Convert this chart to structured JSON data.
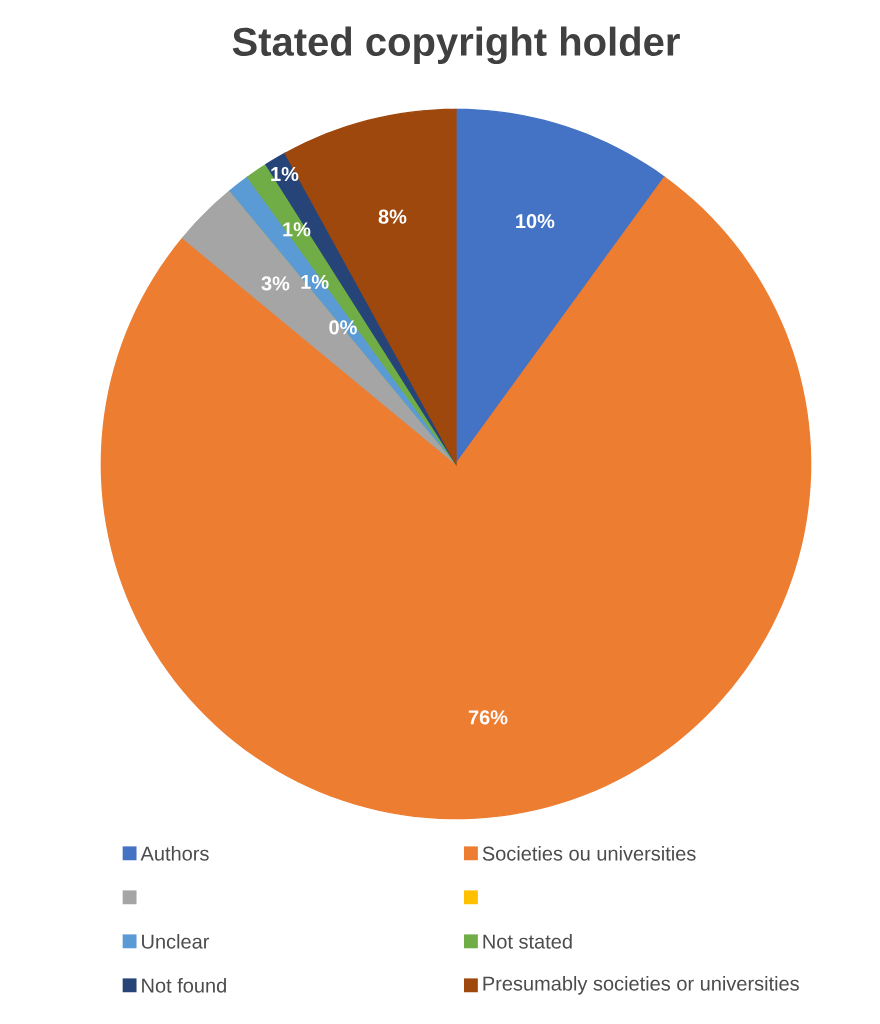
{
  "chart_data": {
    "type": "pie",
    "title": "Stated copyright holder",
    "categories": [
      "Authors",
      "Societies ou universities",
      null,
      null,
      "Unclear",
      "Not stated",
      "Not found",
      "Presumably societies or universities"
    ],
    "values": [
      10,
      76,
      3,
      0,
      1,
      1,
      1,
      8
    ],
    "value_labels": [
      "10%",
      "76%",
      "3%",
      "0%",
      "1%",
      "1%",
      "1%",
      "8%"
    ],
    "colors": [
      "#4472c4",
      "#ed7d31",
      "#a5a5a5",
      "#ffc000",
      "#5b9bd5",
      "#70ad47",
      "#264478",
      "#9e480e"
    ],
    "legend": "bottom"
  }
}
